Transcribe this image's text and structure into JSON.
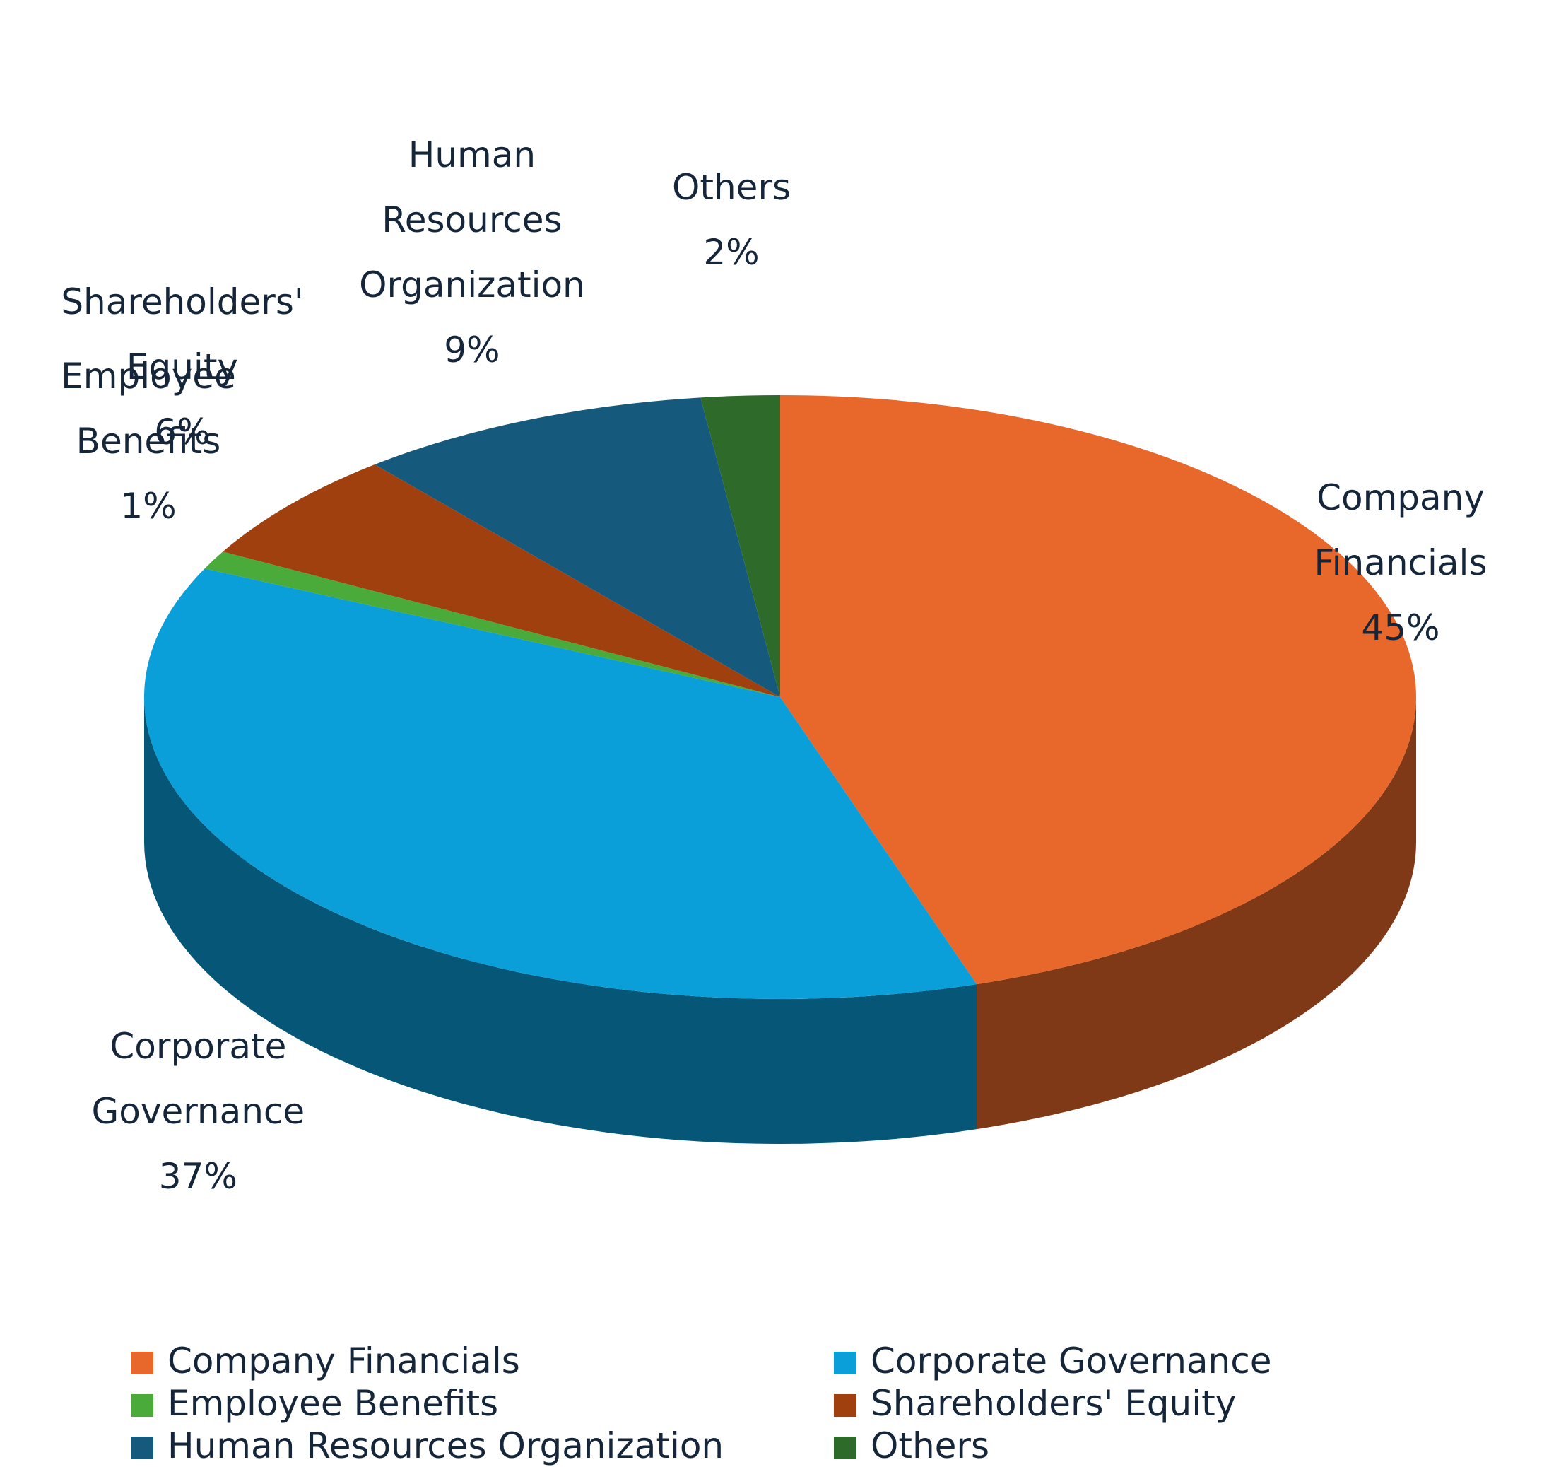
{
  "chart_data": {
    "type": "pie",
    "categories": [
      "Company Financials",
      "Corporate Governance",
      "Employee Benefits",
      "Shareholders' Equity",
      "Human Resources Organization",
      "Others"
    ],
    "values": [
      45,
      37,
      1,
      6,
      9,
      2
    ],
    "value_labels": [
      "45%",
      "37%",
      "1%",
      "6%",
      "9%",
      "2%"
    ],
    "colors": [
      "#e8672a",
      "#0a9fd8",
      "#4aaa3a",
      "#a0400e",
      "#155a7c",
      "#2e6a2a"
    ],
    "legend": "bottom"
  }
}
